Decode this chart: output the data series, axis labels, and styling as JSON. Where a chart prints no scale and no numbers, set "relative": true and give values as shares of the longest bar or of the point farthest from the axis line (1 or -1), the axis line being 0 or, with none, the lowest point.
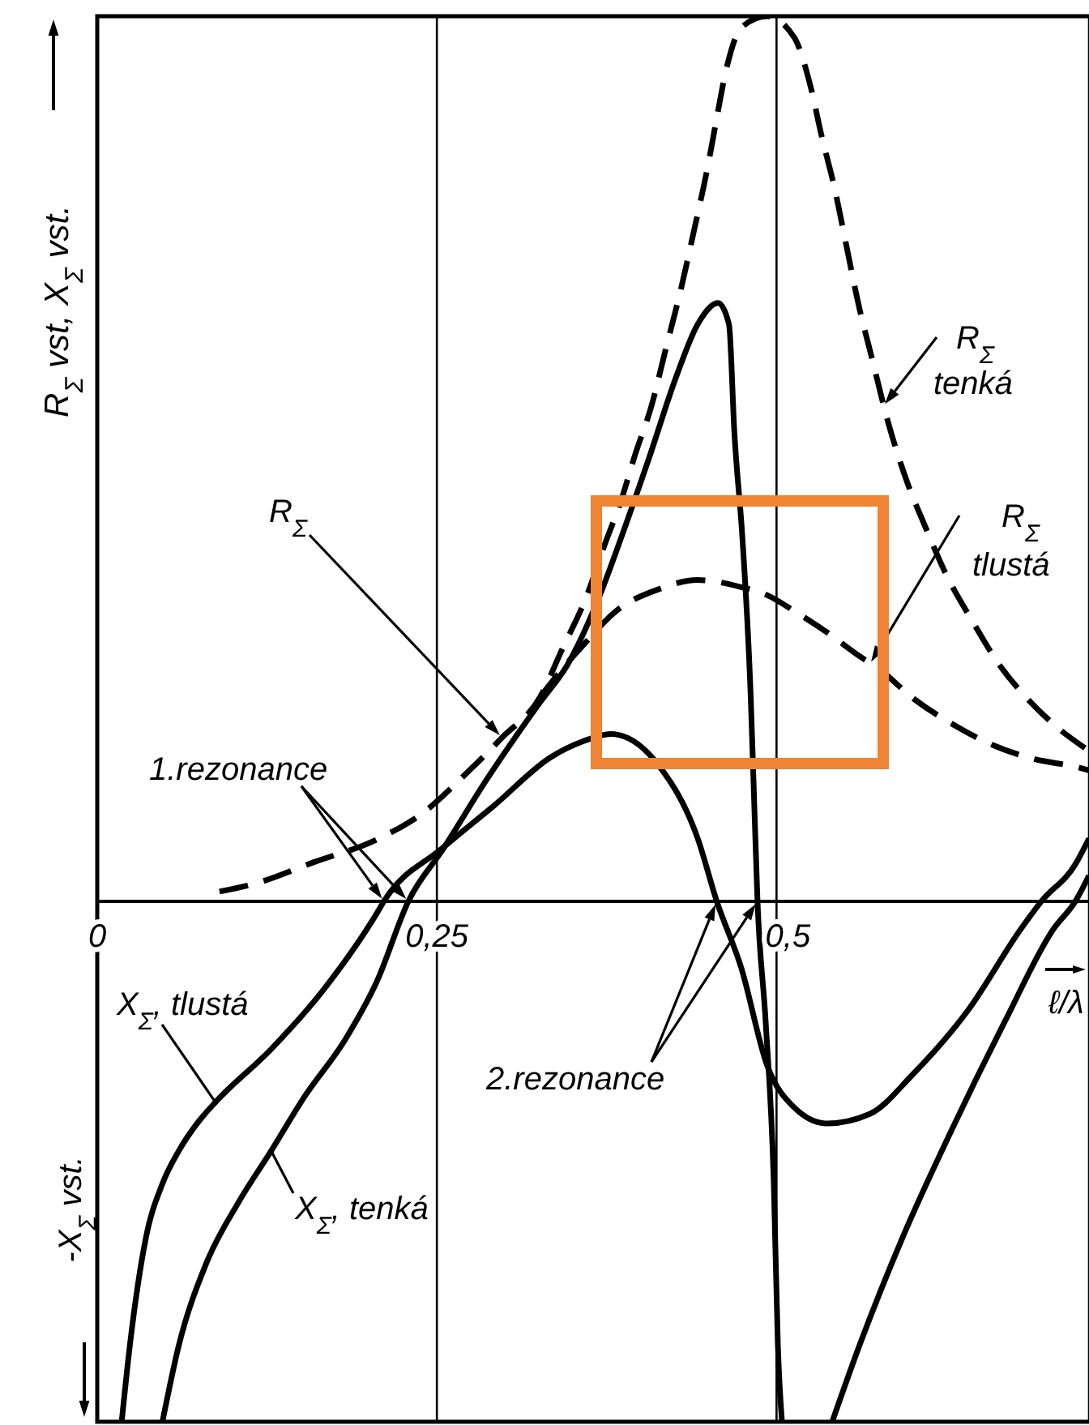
{
  "chart_data": {
    "type": "line",
    "relative": true,
    "xlabel": "ℓ/λ",
    "ylabel": "R$_{Σ}$ vst, X$_{Σ}$ vst.",
    "xlim": [
      0,
      0.73
    ],
    "xticks": [
      0,
      {
        "value": 0.25,
        "label": "0,25"
      },
      {
        "value": 0.5,
        "label": "0,5"
      }
    ],
    "grid": "x",
    "marker": "none",
    "annotations": [
      "-X$_{Σ}$ vst.",
      "R$_{Σ}$",
      "1.rezonance",
      "2.rezonance"
    ],
    "series": [
      {
        "name": "R$_{Σ}$ tenká",
        "color": "#000000",
        "line_style": "dashed",
        "x": [
          0.09,
          0.116,
          0.159,
          0.206,
          0.239,
          0.274,
          0.298,
          0.326,
          0.342,
          0.36,
          0.374,
          0.385,
          0.396,
          0.408,
          0.418,
          0.43,
          0.439,
          0.45,
          0.456,
          0.463,
          0.474,
          0.493,
          0.513,
          0.525,
          0.533,
          0.543,
          0.551,
          0.561,
          0.57,
          0.582,
          0.597,
          0.609,
          0.624,
          0.644,
          0.665,
          0.684,
          0.704,
          0.73
        ],
        "values": [
          0.011,
          0.02,
          0.044,
          0.07,
          0.099,
          0.148,
          0.185,
          0.231,
          0.284,
          0.344,
          0.405,
          0.45,
          0.505,
          0.56,
          0.621,
          0.694,
          0.756,
          0.835,
          0.885,
          0.94,
          0.987,
          1,
          0.976,
          0.921,
          0.866,
          0.804,
          0.744,
          0.67,
          0.615,
          0.542,
          0.47,
          0.425,
          0.372,
          0.317,
          0.265,
          0.23,
          0.2,
          0.17
        ]
      },
      {
        "name": "R$_{Σ}$ tlustá",
        "color": "#000000",
        "line_style": "dashed",
        "x": [
          0.326,
          0.342,
          0.358,
          0.382,
          0.414,
          0.442,
          0.474,
          0.493,
          0.513,
          0.537,
          0.561,
          0.576,
          0.6,
          0.632,
          0.66,
          0.689,
          0.72,
          0.73
        ],
        "values": [
          0.231,
          0.262,
          0.29,
          0.328,
          0.353,
          0.363,
          0.355,
          0.346,
          0.328,
          0.304,
          0.277,
          0.262,
          0.23,
          0.198,
          0.176,
          0.161,
          0.152,
          0.148
        ]
      },
      {
        "name": "X$_{Σ}$, tenká",
        "color": "#000000",
        "line_style": "solid",
        "x": [
          0.048,
          0.06,
          0.08,
          0.104,
          0.128,
          0.152,
          0.183,
          0.206,
          0.229,
          0.255,
          0.286,
          0.326,
          0.346,
          0.37,
          0.385,
          0.406,
          0.426,
          0.442,
          0.457,
          0.465,
          0.469,
          0.475,
          0.481,
          0.483,
          0.486,
          0.492,
          0.498,
          0.501,
          0.504,
          0.52,
          0.541,
          0.561,
          0.593,
          0.629,
          0.668,
          0.704,
          0.72,
          0.73
        ],
        "values": [
          -0.588,
          -0.502,
          -0.41,
          -0.34,
          -0.282,
          -0.222,
          -0.155,
          -0.09,
          0,
          0.06,
          0.136,
          0.225,
          0.267,
          0.346,
          0.408,
          0.5,
          0.592,
          0.652,
          0.676,
          0.652,
          0.529,
          0.408,
          0.231,
          0.139,
          0,
          -0.136,
          -0.319,
          -0.502,
          -0.588,
          null,
          -0.588,
          -0.502,
          -0.379,
          -0.258,
          -0.136,
          -0.031,
          0,
          0.029
        ]
      },
      {
        "name": "X$_{Σ}$, tlustá",
        "color": "#000000",
        "line_style": "solid",
        "x": [
          0.018,
          0.024,
          0.036,
          0.048,
          0.06,
          0.075,
          0.087,
          0.128,
          0.167,
          0.206,
          0.211,
          0.254,
          0.292,
          0.334,
          0.358,
          0.378,
          0.414,
          0.442,
          0.456,
          0.474,
          0.493,
          0.513,
          0.537,
          0.569,
          0.6,
          0.641,
          0.68,
          0.695,
          0.72,
          0.73
        ],
        "values": [
          -0.588,
          -0.502,
          -0.379,
          -0.319,
          -0.282,
          -0.248,
          -0.227,
          -0.167,
          -0.099,
          -0.013,
          0,
          0.06,
          0.108,
          0.163,
          0.181,
          0.189,
          0.152,
          0.071,
          0,
          -0.075,
          -0.185,
          -0.233,
          -0.251,
          -0.24,
          -0.196,
          -0.123,
          -0.031,
          0,
          0.042,
          0.071
        ]
      }
    ]
  }
}
